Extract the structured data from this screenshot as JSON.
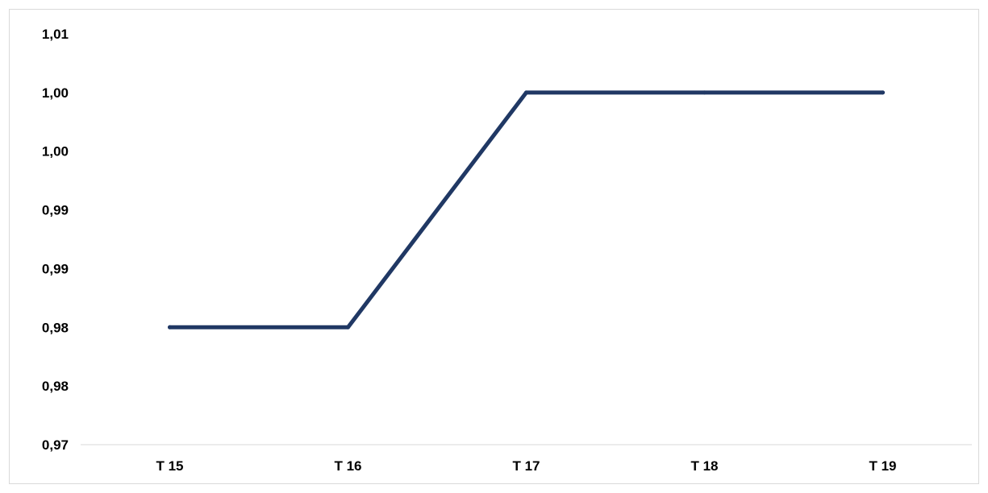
{
  "chart_data": {
    "type": "line",
    "categories": [
      "T 15",
      "T 16",
      "T 17",
      "T 18",
      "T 19"
    ],
    "series": [
      {
        "values": [
          0.98,
          0.98,
          1.0,
          1.0,
          1.0
        ],
        "color": "#203864"
      }
    ],
    "y_ticks": [
      {
        "value": 0.97,
        "label": "0,97"
      },
      {
        "value": 0.975,
        "label": "0,98"
      },
      {
        "value": 0.98,
        "label": "0,98"
      },
      {
        "value": 0.985,
        "label": "0,99"
      },
      {
        "value": 0.99,
        "label": "0,99"
      },
      {
        "value": 0.995,
        "label": "1,00"
      },
      {
        "value": 1.0,
        "label": "1,00"
      },
      {
        "value": 1.005,
        "label": "1,01"
      }
    ],
    "ylim": [
      0.97,
      1.005
    ],
    "grid": false,
    "title": "",
    "xlabel": "",
    "ylabel": ""
  }
}
